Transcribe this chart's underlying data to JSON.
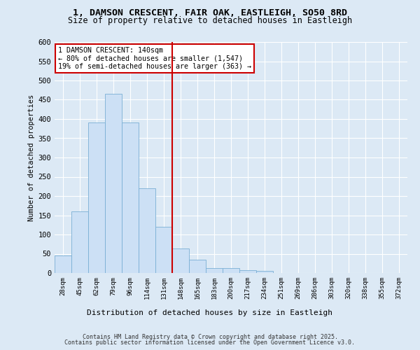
{
  "title_line1": "1, DAMSON CRESCENT, FAIR OAK, EASTLEIGH, SO50 8RD",
  "title_line2": "Size of property relative to detached houses in Eastleigh",
  "xlabel": "Distribution of detached houses by size in Eastleigh",
  "ylabel": "Number of detached properties",
  "categories": [
    "28sqm",
    "45sqm",
    "62sqm",
    "79sqm",
    "96sqm",
    "114sqm",
    "131sqm",
    "148sqm",
    "165sqm",
    "183sqm",
    "200sqm",
    "217sqm",
    "234sqm",
    "251sqm",
    "269sqm",
    "286sqm",
    "303sqm",
    "320sqm",
    "338sqm",
    "355sqm",
    "372sqm"
  ],
  "bar_heights": [
    45,
    160,
    390,
    465,
    390,
    220,
    120,
    63,
    35,
    13,
    13,
    7,
    5,
    0,
    0,
    0,
    0,
    0,
    0,
    0,
    0
  ],
  "bar_color": "#cce0f5",
  "bar_edge_color": "#7aafd4",
  "vline_color": "#cc0000",
  "annotation_title": "1 DAMSON CRESCENT: 140sqm",
  "annotation_line1": "← 80% of detached houses are smaller (1,547)",
  "annotation_line2": "19% of semi-detached houses are larger (363) →",
  "annotation_box_color": "#cc0000",
  "ylim": [
    0,
    600
  ],
  "footer_line1": "Contains HM Land Registry data © Crown copyright and database right 2025.",
  "footer_line2": "Contains public sector information licensed under the Open Government Licence v3.0.",
  "bg_color": "#dce9f5",
  "plot_bg_color": "#dce9f5"
}
